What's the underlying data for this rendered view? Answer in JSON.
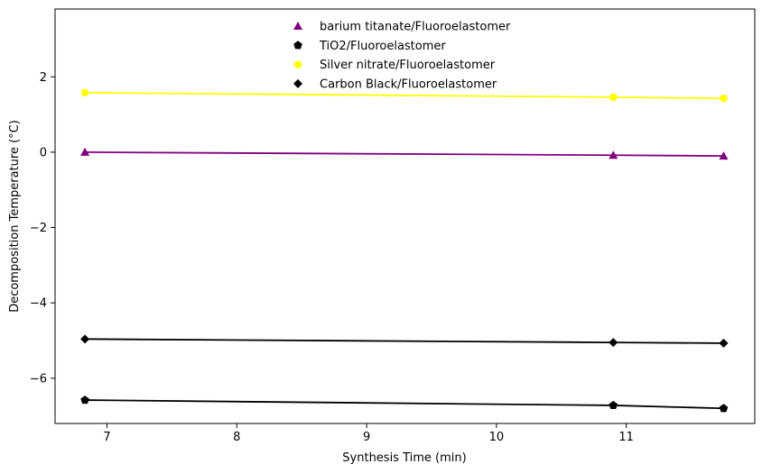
{
  "chart_data": {
    "type": "scatter",
    "xlabel": "Synthesis Time (min)",
    "ylabel": "Decomposition Temperature (°C)",
    "xlim": [
      6.6,
      11.99
    ],
    "ylim": [
      -7.2,
      3.8
    ],
    "xticks": [
      7,
      8,
      9,
      10,
      11
    ],
    "yticks": [
      -6,
      -4,
      -2,
      0,
      2
    ],
    "xtick_labels": [
      "7",
      "8",
      "9",
      "10",
      "11"
    ],
    "ytick_labels": [
      "−6",
      "−4",
      "−2",
      "0",
      "2"
    ],
    "grid": false,
    "legend_position": "top-center",
    "series": [
      {
        "name": "barium titanate/Fluoroelastomer",
        "color": "#800080",
        "marker": "triangle",
        "x": [
          6.83,
          10.9,
          11.75
        ],
        "y": [
          0.0,
          -0.08,
          -0.1
        ]
      },
      {
        "name": "TiO2/Fluoroelastomer",
        "color": "#000000",
        "marker": "pentagon",
        "x": [
          6.83,
          10.9,
          11.75
        ],
        "y": [
          -6.58,
          -6.72,
          -6.8
        ]
      },
      {
        "name": "Silver nitrate/Fluoroelastomer",
        "color": "#ffff00",
        "marker": "circle",
        "x": [
          6.83,
          10.9,
          11.75
        ],
        "y": [
          1.58,
          1.46,
          1.43
        ]
      },
      {
        "name": "Carbon Black/Fluoroelastomer",
        "color": "#000000",
        "marker": "diamond",
        "x": [
          6.83,
          10.9,
          11.75
        ],
        "y": [
          -4.96,
          -5.05,
          -5.07
        ]
      }
    ]
  }
}
